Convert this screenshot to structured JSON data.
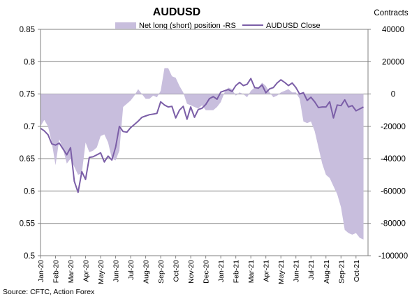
{
  "chart_data": {
    "type": "line",
    "title": "AUDUSD",
    "right_axis_title": "Contracts",
    "source": "Source: CFTC, Action Forex",
    "legend": {
      "position": "top",
      "entries": [
        {
          "label": "Net long (short) position -RS",
          "kind": "area",
          "color": "#C8BEDD"
        },
        {
          "label": "AUDUSD Close",
          "kind": "line",
          "color": "#7B5EA7"
        }
      ]
    },
    "y_left": {
      "min": 0.5,
      "max": 0.85,
      "ticks": [
        "0.5",
        "0.55",
        "0.6",
        "0.65",
        "0.7",
        "0.75",
        "0.8",
        "0.85"
      ],
      "tick_values": [
        0.5,
        0.55,
        0.6,
        0.65,
        0.7,
        0.75,
        0.8,
        0.85
      ]
    },
    "y_right": {
      "min": -100000,
      "max": 40000,
      "ticks": [
        "-100000",
        "-80000",
        "-60000",
        "-40000",
        "-20000",
        "0",
        "20000",
        "40000"
      ],
      "tick_values": [
        -100000,
        -80000,
        -60000,
        -40000,
        -20000,
        0,
        20000,
        40000
      ]
    },
    "x_ticks": [
      "Jan-20",
      "Feb-20",
      "Mar-20",
      "Apr-20",
      "May-20",
      "Jun-20",
      "Jul-20",
      "Aug-20",
      "Sep-20",
      "Oct-20",
      "Nov-20",
      "Dec-20",
      "Jan-21",
      "Feb-21",
      "Mar-21",
      "Apr-21",
      "May-21",
      "Jun-21",
      "Jul-21",
      "Aug-21",
      "Sep-21",
      "Oct-21"
    ],
    "x_range": [
      0,
      21.8
    ],
    "grid": true,
    "series": [
      {
        "name": "AUDUSD Close",
        "axis": "left",
        "x": [
          0,
          0.25,
          0.5,
          0.75,
          1.0,
          1.25,
          1.5,
          1.75,
          2.0,
          2.25,
          2.5,
          2.75,
          3.0,
          3.25,
          3.5,
          3.75,
          4.0,
          4.25,
          4.5,
          4.75,
          5.0,
          5.25,
          5.5,
          5.75,
          6.0,
          6.25,
          6.5,
          6.75,
          7.0,
          7.25,
          7.5,
          7.75,
          8.0,
          8.25,
          8.5,
          8.75,
          9.0,
          9.25,
          9.5,
          9.75,
          10.0,
          10.25,
          10.5,
          10.75,
          11.0,
          11.25,
          11.5,
          11.75,
          12.0,
          12.25,
          12.5,
          12.75,
          13.0,
          13.25,
          13.5,
          13.75,
          14.0,
          14.25,
          14.5,
          14.75,
          15.0,
          15.25,
          15.5,
          15.75,
          16.0,
          16.25,
          16.5,
          16.75,
          17.0,
          17.25,
          17.5,
          17.75,
          18.0,
          18.25,
          18.5,
          18.75,
          19.0,
          19.25,
          19.5,
          19.75,
          20.0,
          20.25,
          20.5,
          20.75,
          21.0,
          21.25,
          21.5
        ],
        "values": [
          0.697,
          0.693,
          0.687,
          0.673,
          0.671,
          0.674,
          0.665,
          0.656,
          0.667,
          0.615,
          0.598,
          0.63,
          0.618,
          0.652,
          0.653,
          0.656,
          0.659,
          0.645,
          0.654,
          0.648,
          0.668,
          0.7,
          0.692,
          0.691,
          0.698,
          0.703,
          0.708,
          0.714,
          0.716,
          0.718,
          0.719,
          0.72,
          0.738,
          0.733,
          0.73,
          0.731,
          0.713,
          0.725,
          0.731,
          0.711,
          0.73,
          0.714,
          0.726,
          0.728,
          0.734,
          0.743,
          0.746,
          0.742,
          0.753,
          0.755,
          0.757,
          0.754,
          0.763,
          0.768,
          0.763,
          0.765,
          0.774,
          0.76,
          0.759,
          0.764,
          0.752,
          0.758,
          0.76,
          0.767,
          0.772,
          0.768,
          0.763,
          0.767,
          0.76,
          0.75,
          0.752,
          0.74,
          0.745,
          0.738,
          0.729,
          0.73,
          0.73,
          0.738,
          0.713,
          0.733,
          0.732,
          0.741,
          0.73,
          0.732,
          0.724,
          0.727,
          0.73
        ]
      },
      {
        "name": "Net long (short) position -RS",
        "axis": "right",
        "x": [
          0,
          0.25,
          0.5,
          0.75,
          1.0,
          1.25,
          1.5,
          1.75,
          2.0,
          2.25,
          2.5,
          2.75,
          3.0,
          3.25,
          3.5,
          3.75,
          4.0,
          4.25,
          4.5,
          4.75,
          5.0,
          5.25,
          5.5,
          5.75,
          6.0,
          6.25,
          6.5,
          6.75,
          7.0,
          7.25,
          7.5,
          7.75,
          8.0,
          8.25,
          8.5,
          8.75,
          9.0,
          9.25,
          9.5,
          9.75,
          10.0,
          10.25,
          10.5,
          10.75,
          11.0,
          11.25,
          11.5,
          11.75,
          12.0,
          12.25,
          12.5,
          12.75,
          13.0,
          13.25,
          13.5,
          13.75,
          14.0,
          14.25,
          14.5,
          14.75,
          15.0,
          15.25,
          15.5,
          15.75,
          16.0,
          16.25,
          16.5,
          16.75,
          17.0,
          17.25,
          17.5,
          17.75,
          18.0,
          18.25,
          18.5,
          18.75,
          19.0,
          19.25,
          19.5,
          19.75,
          20.0,
          20.25,
          20.5,
          20.75,
          21.0,
          21.25,
          21.5
        ],
        "values": [
          -20000,
          -16000,
          -20000,
          -30000,
          -44000,
          -28000,
          -34000,
          -43000,
          -40000,
          -45000,
          -50000,
          -49000,
          -30000,
          -36000,
          -35000,
          -33000,
          -26000,
          -25000,
          -30000,
          -40000,
          -41000,
          -35000,
          -8000,
          -6000,
          -4000,
          -1000,
          3000,
          0,
          -3000,
          -3000,
          -1000,
          -2000,
          2000,
          16000,
          16000,
          11000,
          10000,
          5000,
          1000,
          -6000,
          -7000,
          -8000,
          -9000,
          -7000,
          -10000,
          -10000,
          -10000,
          -8000,
          -5000,
          1000,
          4000,
          3000,
          -1000,
          1000,
          0,
          -2000,
          2000,
          4000,
          4000,
          7000,
          5000,
          1000,
          -2000,
          -1000,
          1000,
          2000,
          3000,
          1000,
          1000,
          -3000,
          -17000,
          -18000,
          -17000,
          -23000,
          -33000,
          -43000,
          -50000,
          -52000,
          -57000,
          -62000,
          -70000,
          -84000,
          -86000,
          -87000,
          -86000,
          -89000,
          -90000
        ]
      }
    ]
  }
}
